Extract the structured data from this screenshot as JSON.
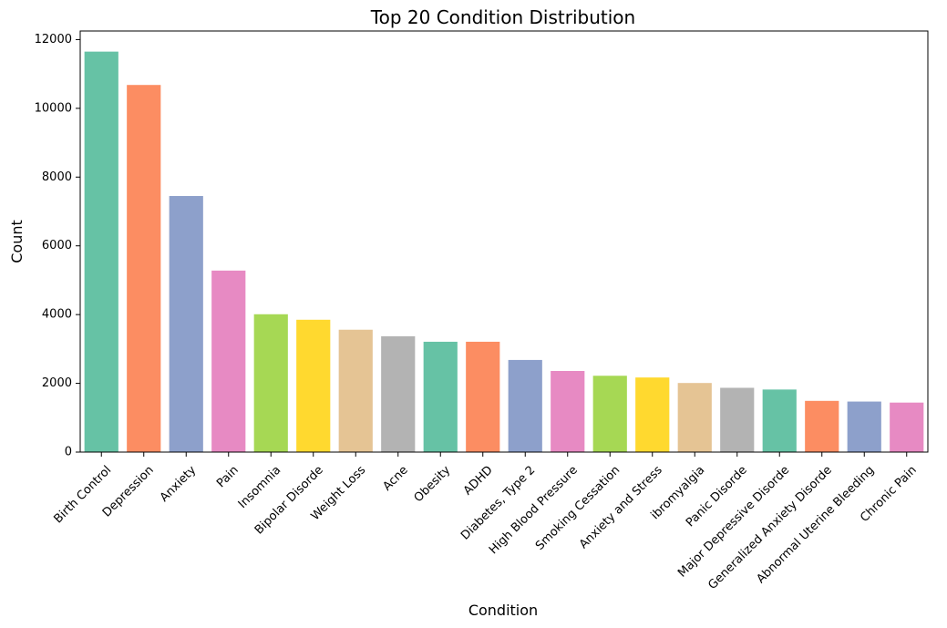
{
  "chart_data": {
    "type": "bar",
    "title": "Top 20 Condition Distribution",
    "xlabel": "Condition",
    "ylabel": "Count",
    "ylim": [
      0,
      12250
    ],
    "yticks": [
      0,
      2000,
      4000,
      6000,
      8000,
      10000,
      12000
    ],
    "grid": false,
    "categories": [
      "Birth Control",
      "Depression",
      "Anxiety",
      "Pain",
      "Insomnia",
      "Bipolar Disorde",
      "Weight Loss",
      "Acne",
      "Obesity",
      "ADHD",
      "Diabetes, Type 2",
      "High Blood Pressure",
      "Smoking Cessation",
      "Anxiety and Stress",
      "ibromyalgia",
      "Panic Disorde",
      "Major Depressive Disorde",
      "Generalized Anxiety Disorde",
      "Abnormal Uterine Bleeding",
      "Chronic Pain"
    ],
    "values": [
      11650,
      10680,
      7450,
      5280,
      4010,
      3850,
      3560,
      3370,
      3210,
      3210,
      2680,
      2360,
      2220,
      2170,
      2010,
      1870,
      1820,
      1490,
      1470,
      1440
    ],
    "colors": [
      "#66c2a5",
      "#fc8d62",
      "#8da0cb",
      "#e78ac3",
      "#a6d854",
      "#ffd92f",
      "#e5c494",
      "#b3b3b3"
    ]
  }
}
